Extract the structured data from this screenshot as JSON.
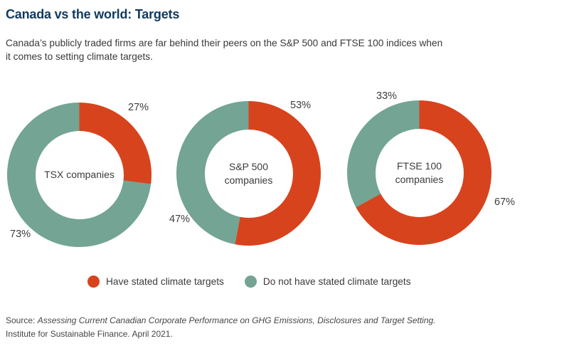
{
  "header": {
    "title": "Canada vs the world: Targets",
    "subtitle_line1": "Canada’s publicly traded firms are far behind their peers on the S&P 500 and FTSE 100 indices when",
    "subtitle_line2": "it comes to setting climate targets."
  },
  "chart_data": {
    "type": "pie",
    "variant": "donut",
    "title": "Canada vs the world: Targets",
    "colors": {
      "have": "#d7431d",
      "not_have": "#74a493"
    },
    "legend": [
      {
        "label": "Have stated climate targets",
        "color": "#d7431d"
      },
      {
        "label": "Do not have stated climate targets",
        "color": "#74a493"
      }
    ],
    "legend_position": "bottom-center",
    "donuts": [
      {
        "name": "TSX companies",
        "have_pct": 27,
        "have_label": "27%",
        "not_have_pct": 73,
        "not_have_label": "73%"
      },
      {
        "name": "S&P 500 companies",
        "have_pct": 53,
        "have_label": "53%",
        "not_have_pct": 47,
        "not_have_label": "47%"
      },
      {
        "name": "FTSE 100 companies",
        "have_pct": 67,
        "have_label": "67%",
        "not_have_pct": 33,
        "not_have_label": "33%"
      }
    ]
  },
  "footer": {
    "source_prefix": "Source: ",
    "source_title": "Assessing Current Canadian Corporate Performance on GHG Emissions, Disclosures and Target Setting.",
    "source_line2": "Institute for Sustainable Finance. April 2021."
  }
}
